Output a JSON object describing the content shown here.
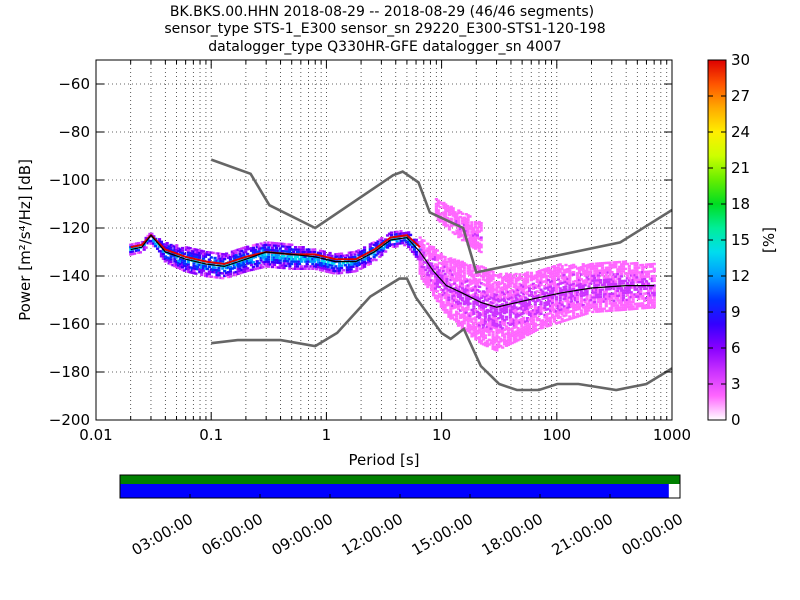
{
  "chart_data": {
    "type": "heatmap",
    "title_lines": [
      "BK.BKS.00.HHN   2018-08-29 -- 2018-08-29  (46/46 segments)",
      "sensor_type STS-1_E300 sensor_sn 29220_E300-STS1-120-198",
      "datalogger_type Q330HR-GFE datalogger_sn 4007"
    ],
    "xlabel": "Period [s]",
    "ylabel": "Power [m²/s⁴/Hz] [dB]",
    "xscale": "log",
    "xlim": [
      0.01,
      1000
    ],
    "ylim": [
      -200,
      -50
    ],
    "x_ticks": [
      {
        "value": 0.01,
        "label": "0.01"
      },
      {
        "value": 0.1,
        "label": "0.1"
      },
      {
        "value": 1,
        "label": "1"
      },
      {
        "value": 10,
        "label": "10"
      },
      {
        "value": 100,
        "label": "100"
      },
      {
        "value": 1000,
        "label": "1000"
      }
    ],
    "y_ticks": [
      {
        "value": -60,
        "label": "−60"
      },
      {
        "value": -80,
        "label": "−80"
      },
      {
        "value": -100,
        "label": "−100"
      },
      {
        "value": -120,
        "label": "−120"
      },
      {
        "value": -140,
        "label": "−140"
      },
      {
        "value": -160,
        "label": "−160"
      },
      {
        "value": -180,
        "label": "−180"
      },
      {
        "value": -200,
        "label": "−200"
      }
    ],
    "grid": true,
    "colorbar": {
      "label": "[%]",
      "range": [
        0,
        30
      ],
      "ticks": [
        {
          "value": 0,
          "label": "0"
        },
        {
          "value": 3,
          "label": "3"
        },
        {
          "value": 6,
          "label": "6"
        },
        {
          "value": 9,
          "label": "9"
        },
        {
          "value": 12,
          "label": "12"
        },
        {
          "value": 15,
          "label": "15"
        },
        {
          "value": 18,
          "label": "18"
        },
        {
          "value": 21,
          "label": "21"
        },
        {
          "value": 24,
          "label": "24"
        },
        {
          "value": 27,
          "label": "27"
        },
        {
          "value": 30,
          "label": "30"
        }
      ],
      "colors": [
        "#ffffff",
        "#ff66ff",
        "#cc33ff",
        "#8800ff",
        "#3300ff",
        "#0033ff",
        "#0099ff",
        "#00ddee",
        "#00ee99",
        "#00dd22",
        "#66ee00",
        "#ccff00",
        "#ffee00",
        "#ffaa00",
        "#ff5500",
        "#dd0000"
      ]
    },
    "noise_models": {
      "color": "#666666",
      "high": {
        "periods": [
          0.1,
          0.22,
          0.32,
          0.8,
          3.8,
          4.6,
          6.3,
          7.9,
          15.4,
          20,
          354.8,
          1000
        ],
        "values": [
          -91.5,
          -97.4,
          -110.5,
          -120,
          -98,
          -96.5,
          -101,
          -113.5,
          -120,
          -138.5,
          -126,
          -112.5
        ]
      },
      "low": {
        "periods": [
          0.1,
          0.17,
          0.4,
          0.8,
          1.24,
          2.4,
          4.3,
          5,
          6,
          10,
          12,
          15.6,
          21.9,
          31.6,
          45,
          70,
          101,
          154,
          328,
          600,
          1000
        ],
        "values": [
          -168,
          -166.7,
          -166.7,
          -169.2,
          -163.7,
          -148.6,
          -141.1,
          -141.1,
          -149,
          -163.8,
          -166.2,
          -162.1,
          -177.5,
          -185,
          -187.5,
          -187.5,
          -185,
          -185,
          -187.5,
          -185,
          -178.5
        ]
      }
    },
    "median_line": {
      "color": "#000000",
      "periods": [
        0.02,
        0.025,
        0.03,
        0.04,
        0.06,
        0.09,
        0.13,
        0.2,
        0.3,
        0.5,
        0.8,
        1.2,
        1.8,
        2.6,
        3.6,
        5,
        6.5,
        8.5,
        11,
        15,
        22,
        30,
        45,
        70,
        110,
        200,
        400,
        700
      ],
      "values": [
        -129,
        -128,
        -123,
        -130,
        -133,
        -135,
        -136,
        -133,
        -130,
        -131,
        -132,
        -134,
        -134,
        -130,
        -125,
        -124,
        -130,
        -138,
        -144,
        -147,
        -151,
        -153,
        -151,
        -149,
        -147,
        -145,
        -144,
        -144
      ]
    },
    "mode_line": {
      "color": "#dd0000",
      "periods": [
        0.02,
        0.025,
        0.03,
        0.04,
        0.06,
        0.09,
        0.13,
        0.2,
        0.3,
        0.5,
        0.8,
        1.2,
        1.8,
        2.6,
        3.6,
        5,
        6.5
      ],
      "values": [
        -128,
        -127,
        -123,
        -129,
        -132,
        -134,
        -135,
        -132,
        -130,
        -131,
        -131,
        -133,
        -133,
        -129,
        -124,
        -123,
        -128
      ]
    },
    "density_bands": [
      {
        "periods": [
          0.02,
          0.025,
          0.03,
          0.04,
          0.06,
          0.09,
          0.13,
          0.2,
          0.3,
          0.5,
          0.8,
          1.2,
          1.8,
          2.6,
          3.6,
          5,
          6.5
        ],
        "center": [
          -129,
          -128,
          -124,
          -130,
          -133,
          -135,
          -136,
          -133,
          -131,
          -132,
          -133,
          -135,
          -134,
          -130,
          -125,
          -124,
          -130
        ],
        "halfwidth": [
          2,
          2,
          2,
          4,
          5,
          5,
          5,
          5,
          5,
          5,
          4,
          4,
          4,
          4,
          3,
          3,
          4
        ],
        "level": 12
      },
      {
        "periods": [
          6.5,
          8.5,
          11,
          15,
          22,
          30,
          45,
          70,
          110,
          200,
          400,
          700
        ],
        "center": [
          -132,
          -138,
          -144,
          -148,
          -152,
          -155,
          -153,
          -150,
          -147,
          -145,
          -144,
          -144
        ],
        "halfwidth": [
          8,
          10,
          12,
          14,
          16,
          16,
          14,
          12,
          12,
          10,
          10,
          9
        ],
        "level": 3
      },
      {
        "periods": [
          9,
          12,
          16,
          22
        ],
        "center": [
          -112,
          -116,
          -120,
          -124
        ],
        "halfwidth": [
          4,
          5,
          6,
          6
        ],
        "level": 2
      }
    ],
    "data_coverage": {
      "time_ticks": [
        "03:00:00",
        "06:00:00",
        "09:00:00",
        "12:00:00",
        "15:00:00",
        "18:00:00",
        "21:00:00",
        "00:00:00"
      ],
      "segments_row_color": "#008000",
      "data_row_color": "#0000ff",
      "data_fraction": 0.98
    }
  }
}
